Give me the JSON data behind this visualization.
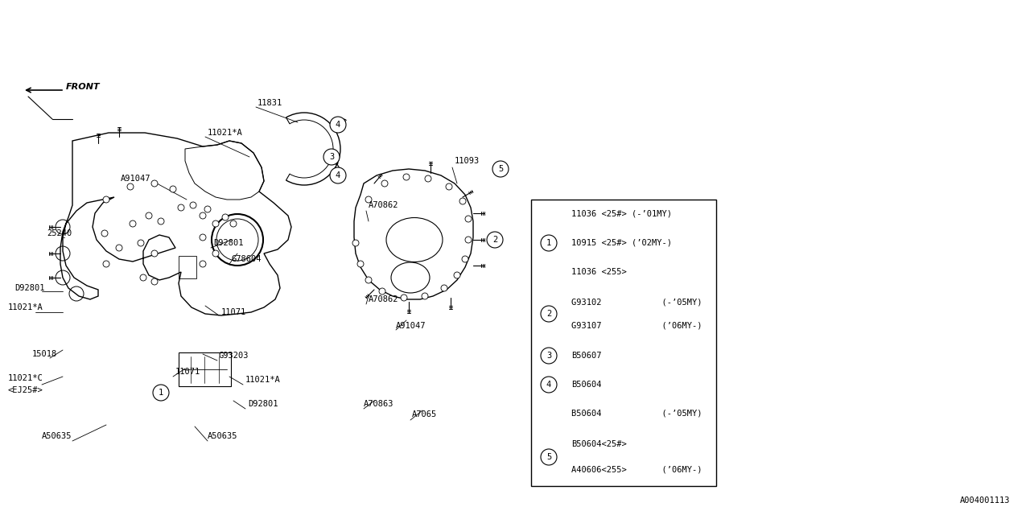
{
  "bg_color": "#ffffff",
  "line_color": "#000000",
  "diagram_id": "A004001113",
  "table_rows": [
    {
      "num": null,
      "line1": "11036 <25#> (-’01MY)",
      "line2": null
    },
    {
      "num": 1,
      "line1": "10915 <25#> (’02MY-)",
      "line2": null
    },
    {
      "num": null,
      "line1": "11036 <255>",
      "line2": null
    },
    {
      "num": 2,
      "line1": "G93102            (-’05MY)",
      "line2": "G93107            (’06MY-)"
    },
    {
      "num": 3,
      "line1": "B50607",
      "line2": null
    },
    {
      "num": 4,
      "line1": "B50604",
      "line2": null
    },
    {
      "num": null,
      "line1": "B50604            (-’05MY)",
      "line2": null
    },
    {
      "num": 5,
      "line1": "B50604<25#>",
      "line2": "A40606<255>       (’06MY-)"
    }
  ]
}
